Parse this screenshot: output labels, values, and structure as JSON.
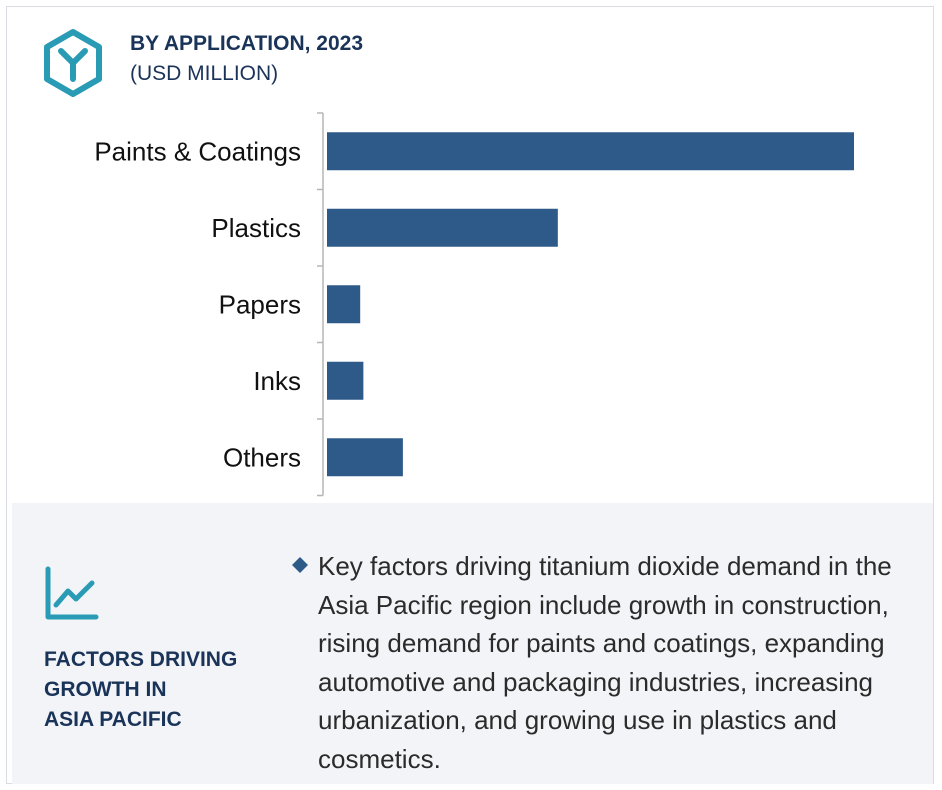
{
  "header": {
    "title": "BY APPLICATION, 2023",
    "subtitle": "(USD MILLION)",
    "logo_icon": "hexagon-y-logo-icon"
  },
  "chart_data": {
    "type": "bar",
    "orientation": "horizontal",
    "categories": [
      "Paints & Coatings",
      "Plastics",
      "Papers",
      "Inks",
      "Others"
    ],
    "values": [
      100,
      43.8,
      6.3,
      6.9,
      14.4
    ],
    "value_note": "relative values; no axis scale shown",
    "bar_color": "#2e5a8a",
    "grid": false,
    "legend": "none"
  },
  "panel": {
    "icon": "trend-chart-icon",
    "heading_lines": [
      "FACTORS DRIVING",
      "GROWTH IN",
      "ASIA PACIFIC"
    ],
    "bullet_icon": "diamond-bullet-icon",
    "bullet_text": "Key factors driving titanium dioxide demand in the Asia Pacific region include growth in construction, rising demand for paints and coatings, expanding automotive and packaging industries, increasing urbanization, and growing use in plastics and cosmetics."
  },
  "colors": {
    "navy": "#1a3358",
    "teal": "#2a9bb5",
    "bar": "#2e5a8a",
    "panel_bg": "#f3f4f8",
    "axis": "#b5b5b5"
  }
}
